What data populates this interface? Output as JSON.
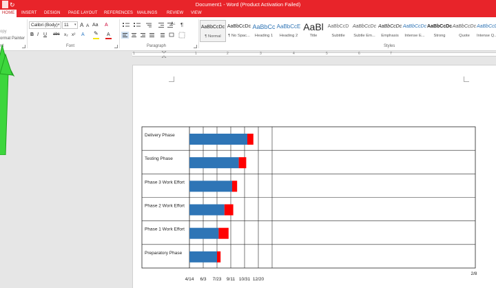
{
  "window": {
    "title": "Document1 - Word (Product Activation Failed)"
  },
  "tabs": [
    {
      "label": "HOME",
      "active": true
    },
    {
      "label": "INSERT",
      "active": false
    },
    {
      "label": "DESIGN",
      "active": false
    },
    {
      "label": "PAGE LAYOUT",
      "active": false
    },
    {
      "label": "REFERENCES",
      "active": false
    },
    {
      "label": "MAILINGS",
      "active": false
    },
    {
      "label": "REVIEW",
      "active": false
    },
    {
      "label": "VIEW",
      "active": false
    }
  ],
  "clipboard": {
    "copy_label": "opy",
    "format_painter_label": "ormat Painter",
    "group_label": "rd"
  },
  "font": {
    "family_value": "Calibri (Body)",
    "size_value": "11",
    "group_label": "Font",
    "bold": "B",
    "italic": "I",
    "underline": "U",
    "strike": "abc",
    "subscript": "x₂",
    "superscript": "x²",
    "grow": "A",
    "shrink": "A",
    "case": "Aa",
    "clear": "A",
    "text_effects": "A",
    "font_color": "A",
    "highlight_color": "#f7e600",
    "font_color_value": "#e11b1b"
  },
  "paragraph": {
    "group_label": "Paragraph",
    "sort": "A↓",
    "pilcrow": "¶"
  },
  "styles": {
    "group_label": "Styles",
    "items": [
      {
        "preview": "AaBbCcDc",
        "label": "¶ Normal",
        "selected": true
      },
      {
        "preview": "AaBbCcDc",
        "label": "¶ No Spac..."
      },
      {
        "preview": "AaBbCc",
        "label": "Heading 1"
      },
      {
        "preview": "AaBbCcE",
        "label": "Heading 2"
      },
      {
        "preview": "AaBl",
        "label": "Title"
      },
      {
        "preview": "AaBbCcD",
        "label": "Subtitle"
      },
      {
        "preview": "AaBbCcDc",
        "label": "Subtle Em..."
      },
      {
        "preview": "AaBbCcDc",
        "label": "Emphasis"
      },
      {
        "preview": "AaBbCcDc",
        "label": "Intense E..."
      },
      {
        "preview": "AaBbCcDc",
        "label": "Strong"
      },
      {
        "preview": "AaBbCcDc",
        "label": "Quote"
      },
      {
        "preview": "AaBbCcDc",
        "label": "Intense Q..."
      }
    ]
  },
  "ruler": {
    "numbers": [
      "1",
      "1",
      "2",
      "3",
      "4",
      "5",
      "6",
      "7"
    ]
  },
  "chart_data": {
    "type": "bar",
    "orientation": "horizontal-stacked",
    "categories": [
      "Delivery Phase",
      "Testing Phase",
      "Phase 3 Work Effort",
      "Phase 2 Work Effort",
      "Phase 1 Work Effort",
      "Preparatory Phase"
    ],
    "x_tick_labels": [
      "4/14",
      "6/3",
      "7/23",
      "9/11",
      "10/31",
      "12/20",
      "2/8"
    ],
    "series": [
      {
        "color": "#2e75b6",
        "values": [
          210,
          179,
          155,
          127,
          106,
          100
        ]
      },
      {
        "color": "#ff0000",
        "values": [
          22,
          27,
          18,
          32,
          36,
          13
        ]
      }
    ],
    "x_range_days": [
      0,
      350
    ],
    "grid": true,
    "legend": "none"
  }
}
